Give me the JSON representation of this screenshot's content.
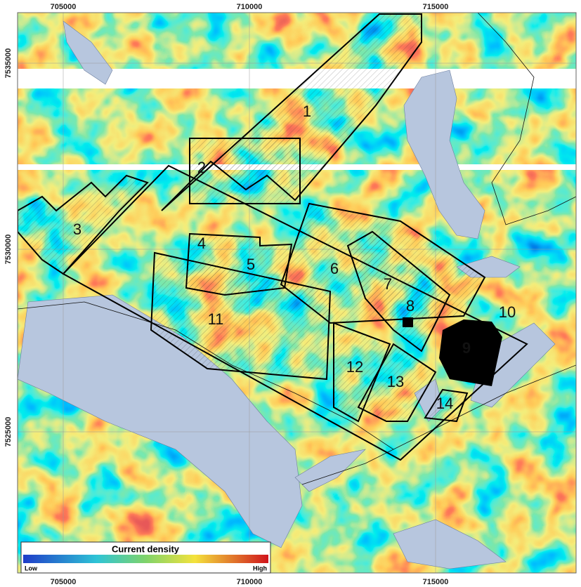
{
  "x_labels": [
    705000,
    710000,
    715000
  ],
  "y_labels": [
    7535000,
    7530000,
    7525000
  ],
  "areas": [
    {
      "label": "1"
    },
    {
      "label": "2"
    },
    {
      "label": "3"
    },
    {
      "label": "4"
    },
    {
      "label": "5"
    },
    {
      "label": "6"
    },
    {
      "label": "7"
    },
    {
      "label": "8"
    },
    {
      "label": "9"
    },
    {
      "label": "10"
    },
    {
      "label": "11"
    },
    {
      "label": "12"
    },
    {
      "label": "13"
    },
    {
      "label": "14"
    }
  ],
  "legend": {
    "title": "Current density",
    "low": "Low",
    "high": "High"
  }
}
